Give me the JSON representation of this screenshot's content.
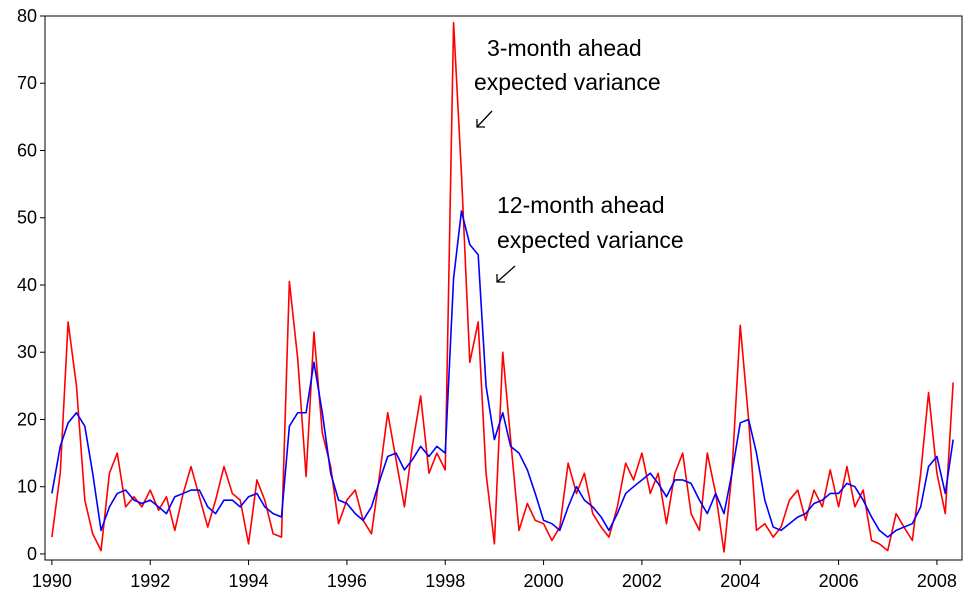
{
  "chart_data": {
    "type": "line",
    "x": [
      1990,
      1990.17,
      1990.33,
      1990.5,
      1990.67,
      1990.83,
      1991,
      1991.17,
      1991.33,
      1991.5,
      1991.67,
      1991.83,
      1992,
      1992.17,
      1992.33,
      1992.5,
      1992.67,
      1992.83,
      1993,
      1993.17,
      1993.33,
      1993.5,
      1993.67,
      1993.83,
      1994,
      1994.17,
      1994.33,
      1994.5,
      1994.67,
      1994.83,
      1995,
      1995.17,
      1995.33,
      1995.5,
      1995.67,
      1995.83,
      1996,
      1996.17,
      1996.33,
      1996.5,
      1996.67,
      1996.83,
      1997,
      1997.17,
      1997.33,
      1997.5,
      1997.67,
      1997.83,
      1998,
      1998.17,
      1998.33,
      1998.5,
      1998.67,
      1998.83,
      1999,
      1999.17,
      1999.33,
      1999.5,
      1999.67,
      1999.83,
      2000,
      2000.17,
      2000.33,
      2000.5,
      2000.67,
      2000.83,
      2001,
      2001.17,
      2001.33,
      2001.5,
      2001.67,
      2001.83,
      2002,
      2002.17,
      2002.33,
      2002.5,
      2002.67,
      2002.83,
      2003,
      2003.17,
      2003.33,
      2003.5,
      2003.67,
      2003.83,
      2004,
      2004.17,
      2004.33,
      2004.5,
      2004.67,
      2004.83,
      2005,
      2005.17,
      2005.33,
      2005.5,
      2005.67,
      2005.83,
      2006,
      2006.17,
      2006.33,
      2006.5,
      2006.67,
      2006.83,
      2007,
      2007.17,
      2007.33,
      2007.5,
      2007.67,
      2007.83,
      2008,
      2008.17,
      2008.33
    ],
    "series": [
      {
        "color": "#ff0000",
        "values": [
          2.5,
          12,
          34.5,
          25,
          8,
          3,
          0.5,
          12,
          15,
          7,
          8.5,
          7,
          9.5,
          6.5,
          8.5,
          3.5,
          9,
          13,
          8.5,
          4,
          8,
          13,
          9,
          8,
          1.5,
          11,
          8,
          3,
          2.5,
          40.5,
          29,
          11.5,
          33,
          18,
          13,
          4.5,
          8,
          9.5,
          5,
          3,
          12,
          21,
          14,
          7,
          16,
          23.5,
          12,
          15,
          12.5,
          79,
          56.5,
          28.5,
          34.5,
          12,
          1.5,
          30,
          17,
          3.5,
          7.5,
          5,
          4.5,
          2,
          4,
          13.5,
          9,
          12,
          6,
          4,
          2.5,
          7,
          13.5,
          11,
          15,
          9,
          12,
          4.5,
          12,
          15,
          6,
          3.5,
          15,
          9,
          0.3,
          12,
          34,
          20,
          3.5,
          4.5,
          2.5,
          4,
          8,
          9.5,
          5,
          9.5,
          7,
          12.5,
          7,
          13,
          7,
          9.5,
          2,
          1.5,
          0.5,
          6,
          4,
          2,
          12,
          24,
          12,
          6,
          25.5
        ]
      },
      {
        "color": "#0000ff",
        "values": [
          9,
          16,
          19.5,
          21,
          19,
          12,
          3.5,
          7,
          9,
          9.5,
          8,
          7.5,
          8,
          7,
          6,
          8.5,
          9,
          9.5,
          9.5,
          7,
          6,
          8,
          8,
          7,
          8.5,
          9,
          7,
          6,
          5.5,
          19,
          21,
          21,
          28.5,
          21,
          12,
          8,
          7.5,
          6,
          5,
          7,
          11,
          14.5,
          15,
          12.5,
          14,
          16,
          14.5,
          16,
          15,
          41,
          51,
          46,
          44.5,
          25,
          17,
          21,
          16,
          15,
          12.5,
          9,
          5,
          4.5,
          3.5,
          7,
          10,
          8,
          7,
          5.5,
          3.5,
          6,
          9,
          10,
          11,
          12,
          10.5,
          8.5,
          11,
          11,
          10.5,
          8,
          6,
          9,
          6,
          12,
          19.5,
          20,
          15,
          8,
          4,
          3.5,
          4.5,
          5.5,
          6,
          7.5,
          8,
          9,
          9,
          10.5,
          10,
          8,
          5.5,
          3.5,
          2.5,
          3.5,
          4,
          4.5,
          7,
          13,
          14.5,
          9,
          17
        ]
      }
    ],
    "xlim": [
      1989.86,
      2008.51
    ],
    "xticks": [
      1990,
      1992,
      1994,
      1996,
      1998,
      2000,
      2002,
      2004,
      2006,
      2008
    ],
    "ylim": [
      -0.9,
      80
    ],
    "yticks": [
      0,
      10,
      20,
      30,
      40,
      50,
      60,
      70,
      80
    ],
    "annotations": [
      [
        "3-month ahead",
        "expected variance"
      ],
      [
        "12-month ahead",
        "expected variance"
      ]
    ]
  }
}
